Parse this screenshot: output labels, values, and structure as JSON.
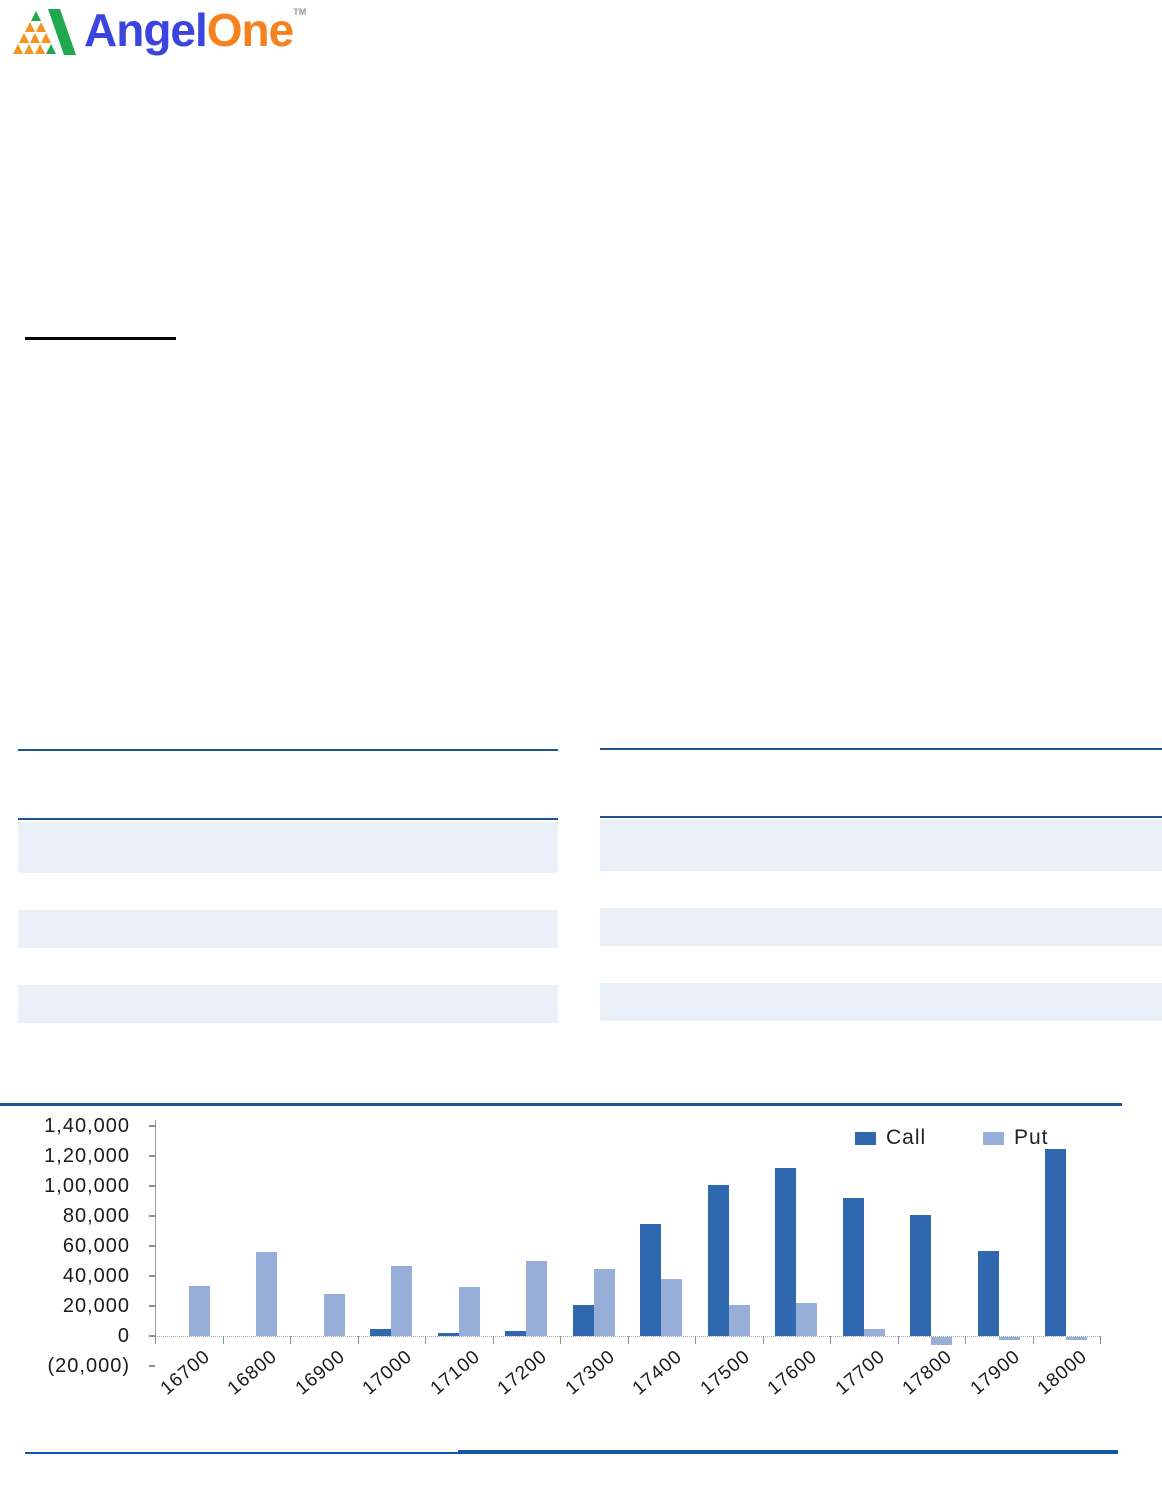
{
  "logo": {
    "angel": "Angel",
    "one": "One",
    "tm": "TM",
    "blue": "#3B44DF",
    "orange": "#F5821F",
    "icon_orange": "#F7941D",
    "icon_green": "#1FA84D"
  },
  "colors": {
    "rule_navy": "#1F5494",
    "band_light_blue": "#EAF0F8",
    "bottom_rule_blue": "#1155AD",
    "axis_gray": "#9a9a9a",
    "call_bar": "#3068B0",
    "put_bar": "#97AED9"
  },
  "chart_data": {
    "type": "bar",
    "title": "",
    "xlabel": "",
    "ylabel": "",
    "categories": [
      "16700",
      "16800",
      "16900",
      "17000",
      "17100",
      "17200",
      "17300",
      "17400",
      "17500",
      "17600",
      "17700",
      "17800",
      "17900",
      "18000"
    ],
    "series": [
      {
        "name": "Call",
        "color": "#3068B0",
        "values": [
          0,
          0,
          0,
          4500,
          2000,
          3500,
          20500,
          75000,
          101000,
          112000,
          92000,
          81000,
          57000,
          124500
        ]
      },
      {
        "name": "Put",
        "color": "#97AED9",
        "values": [
          33500,
          56000,
          28000,
          47000,
          32500,
          50000,
          45000,
          38000,
          21000,
          22000,
          4500,
          -5000,
          -2000,
          -2000
        ]
      }
    ],
    "ylim": [
      -20000,
      140000
    ],
    "ytick_step": 20000,
    "ytick_labels": [
      "(20,000)",
      "0",
      "20,000",
      "40,000",
      "60,000",
      "80,000",
      "1,00,000",
      "1,20,000",
      "1,40,000"
    ],
    "legend_position": "top-right",
    "grid": false
  }
}
